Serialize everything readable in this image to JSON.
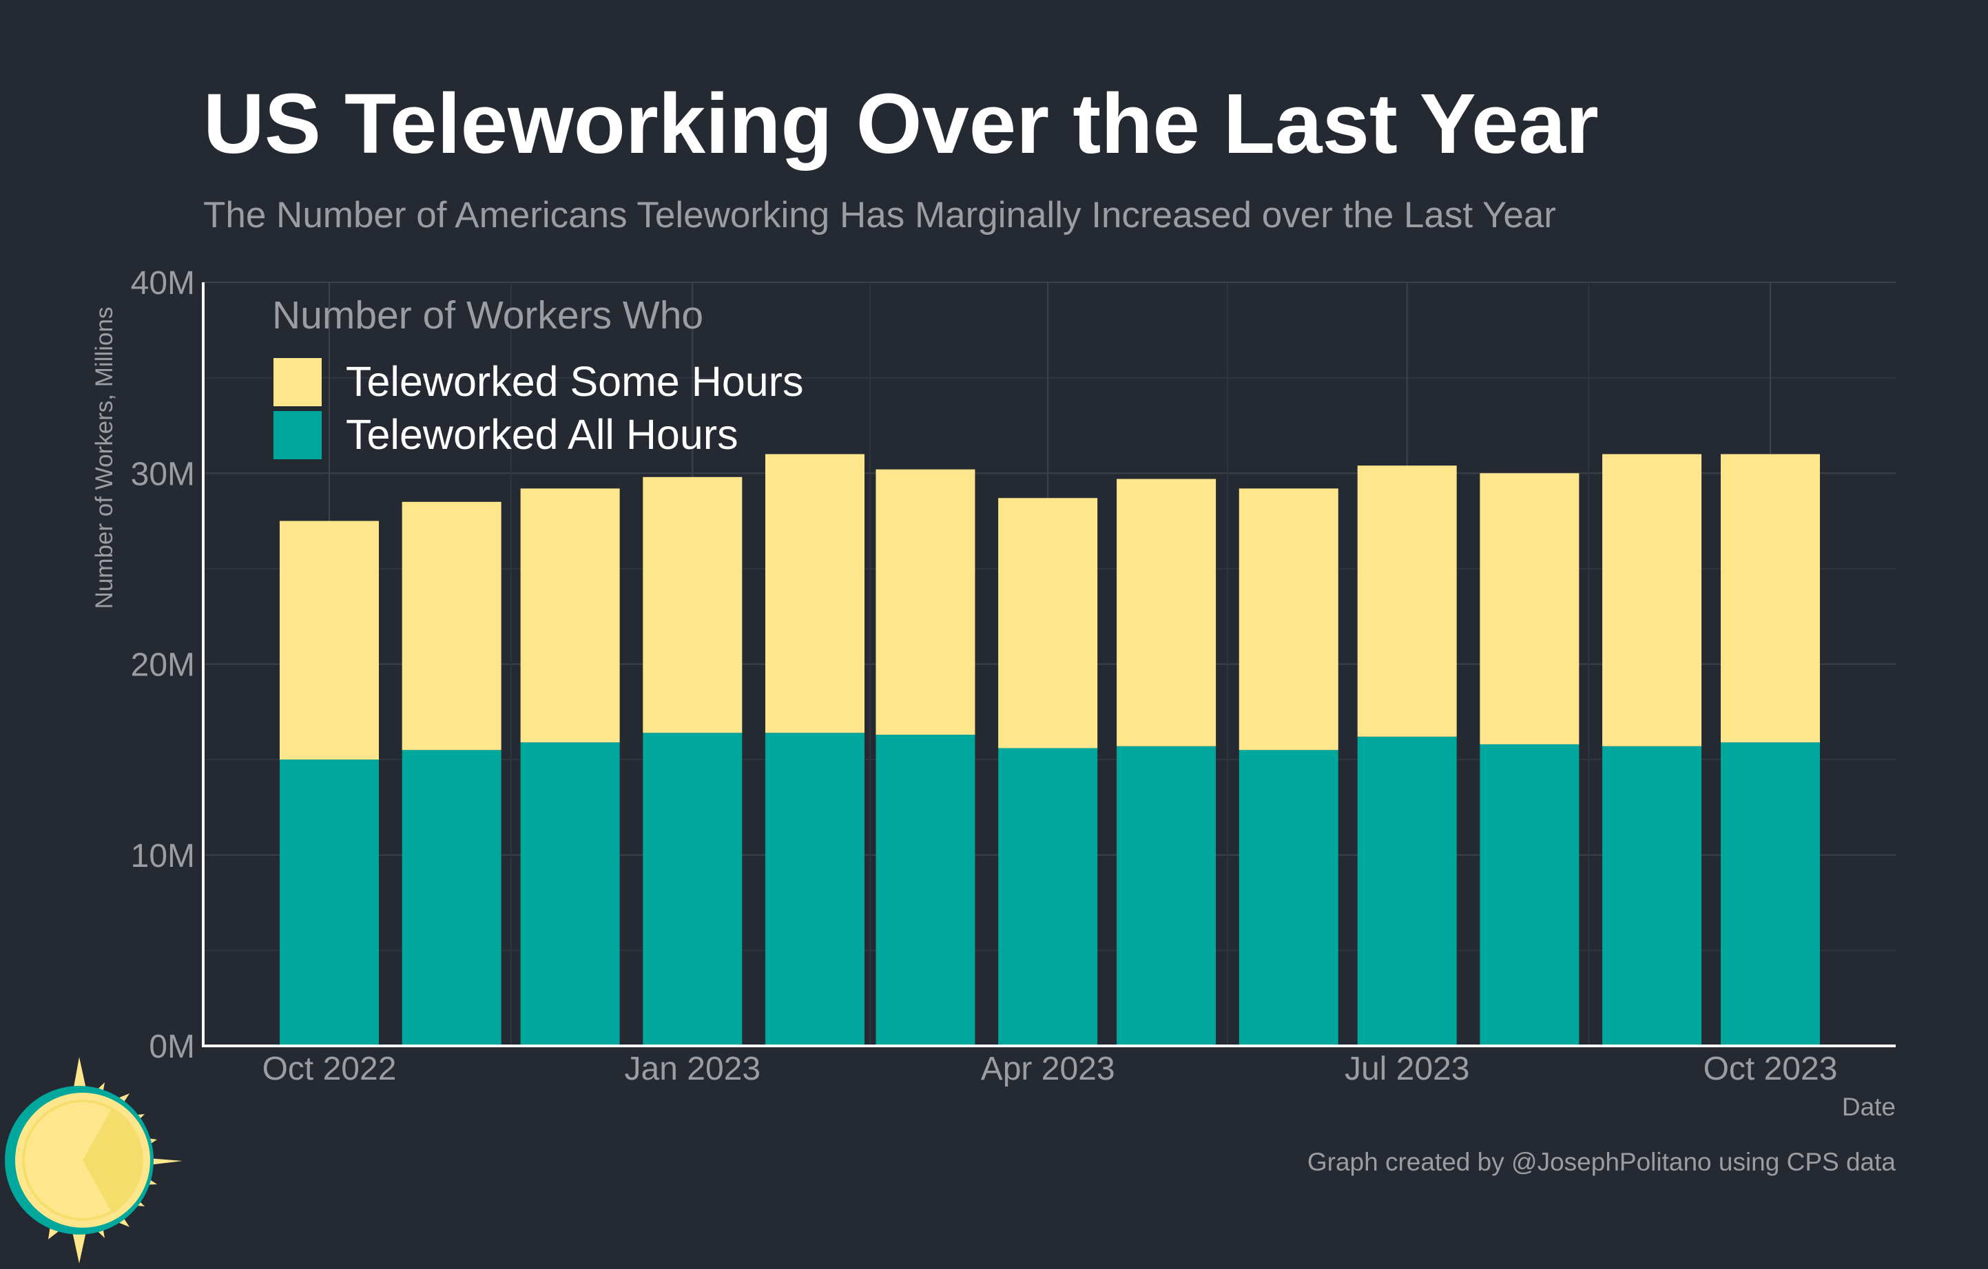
{
  "chart_data": {
    "type": "bar",
    "stacked": true,
    "title": "US Teleworking Over the Last Year",
    "subtitle": "The Number of Americans Teleworking Has Marginally Increased over the Last Year",
    "xlabel": "Date",
    "ylabel": "Number of Workers, Millions",
    "caption": "Graph created by @JosephPolitano using CPS data",
    "ylim": [
      0,
      40
    ],
    "y_ticks": [
      "0M",
      "10M",
      "20M",
      "30M",
      "40M"
    ],
    "x_ticks": [
      "Oct 2022",
      "Jan 2023",
      "Apr 2023",
      "Jul 2023",
      "Oct 2023"
    ],
    "grid": true,
    "legend": {
      "title": "Number of Workers Who",
      "position": "top-left",
      "entries": [
        "Teleworked Some Hours",
        "Teleworked All Hours"
      ]
    },
    "x": [
      "2022-10",
      "2022-11",
      "2022-12",
      "2023-01",
      "2023-02",
      "2023-03",
      "2023-04",
      "2023-05",
      "2023-06",
      "2023-07",
      "2023-08",
      "2023-09",
      "2023-10"
    ],
    "series": [
      {
        "name": "Teleworked All Hours",
        "color": "#00a79c",
        "values": [
          15.0,
          15.5,
          15.9,
          16.4,
          16.4,
          16.3,
          15.6,
          15.7,
          15.5,
          16.2,
          15.8,
          15.7,
          15.9
        ]
      },
      {
        "name": "Teleworked Some Hours",
        "color": "#fee68d",
        "values": [
          12.5,
          13.0,
          13.3,
          13.4,
          14.6,
          13.9,
          13.1,
          14.0,
          13.7,
          14.2,
          14.2,
          15.3,
          15.1
        ]
      }
    ]
  }
}
